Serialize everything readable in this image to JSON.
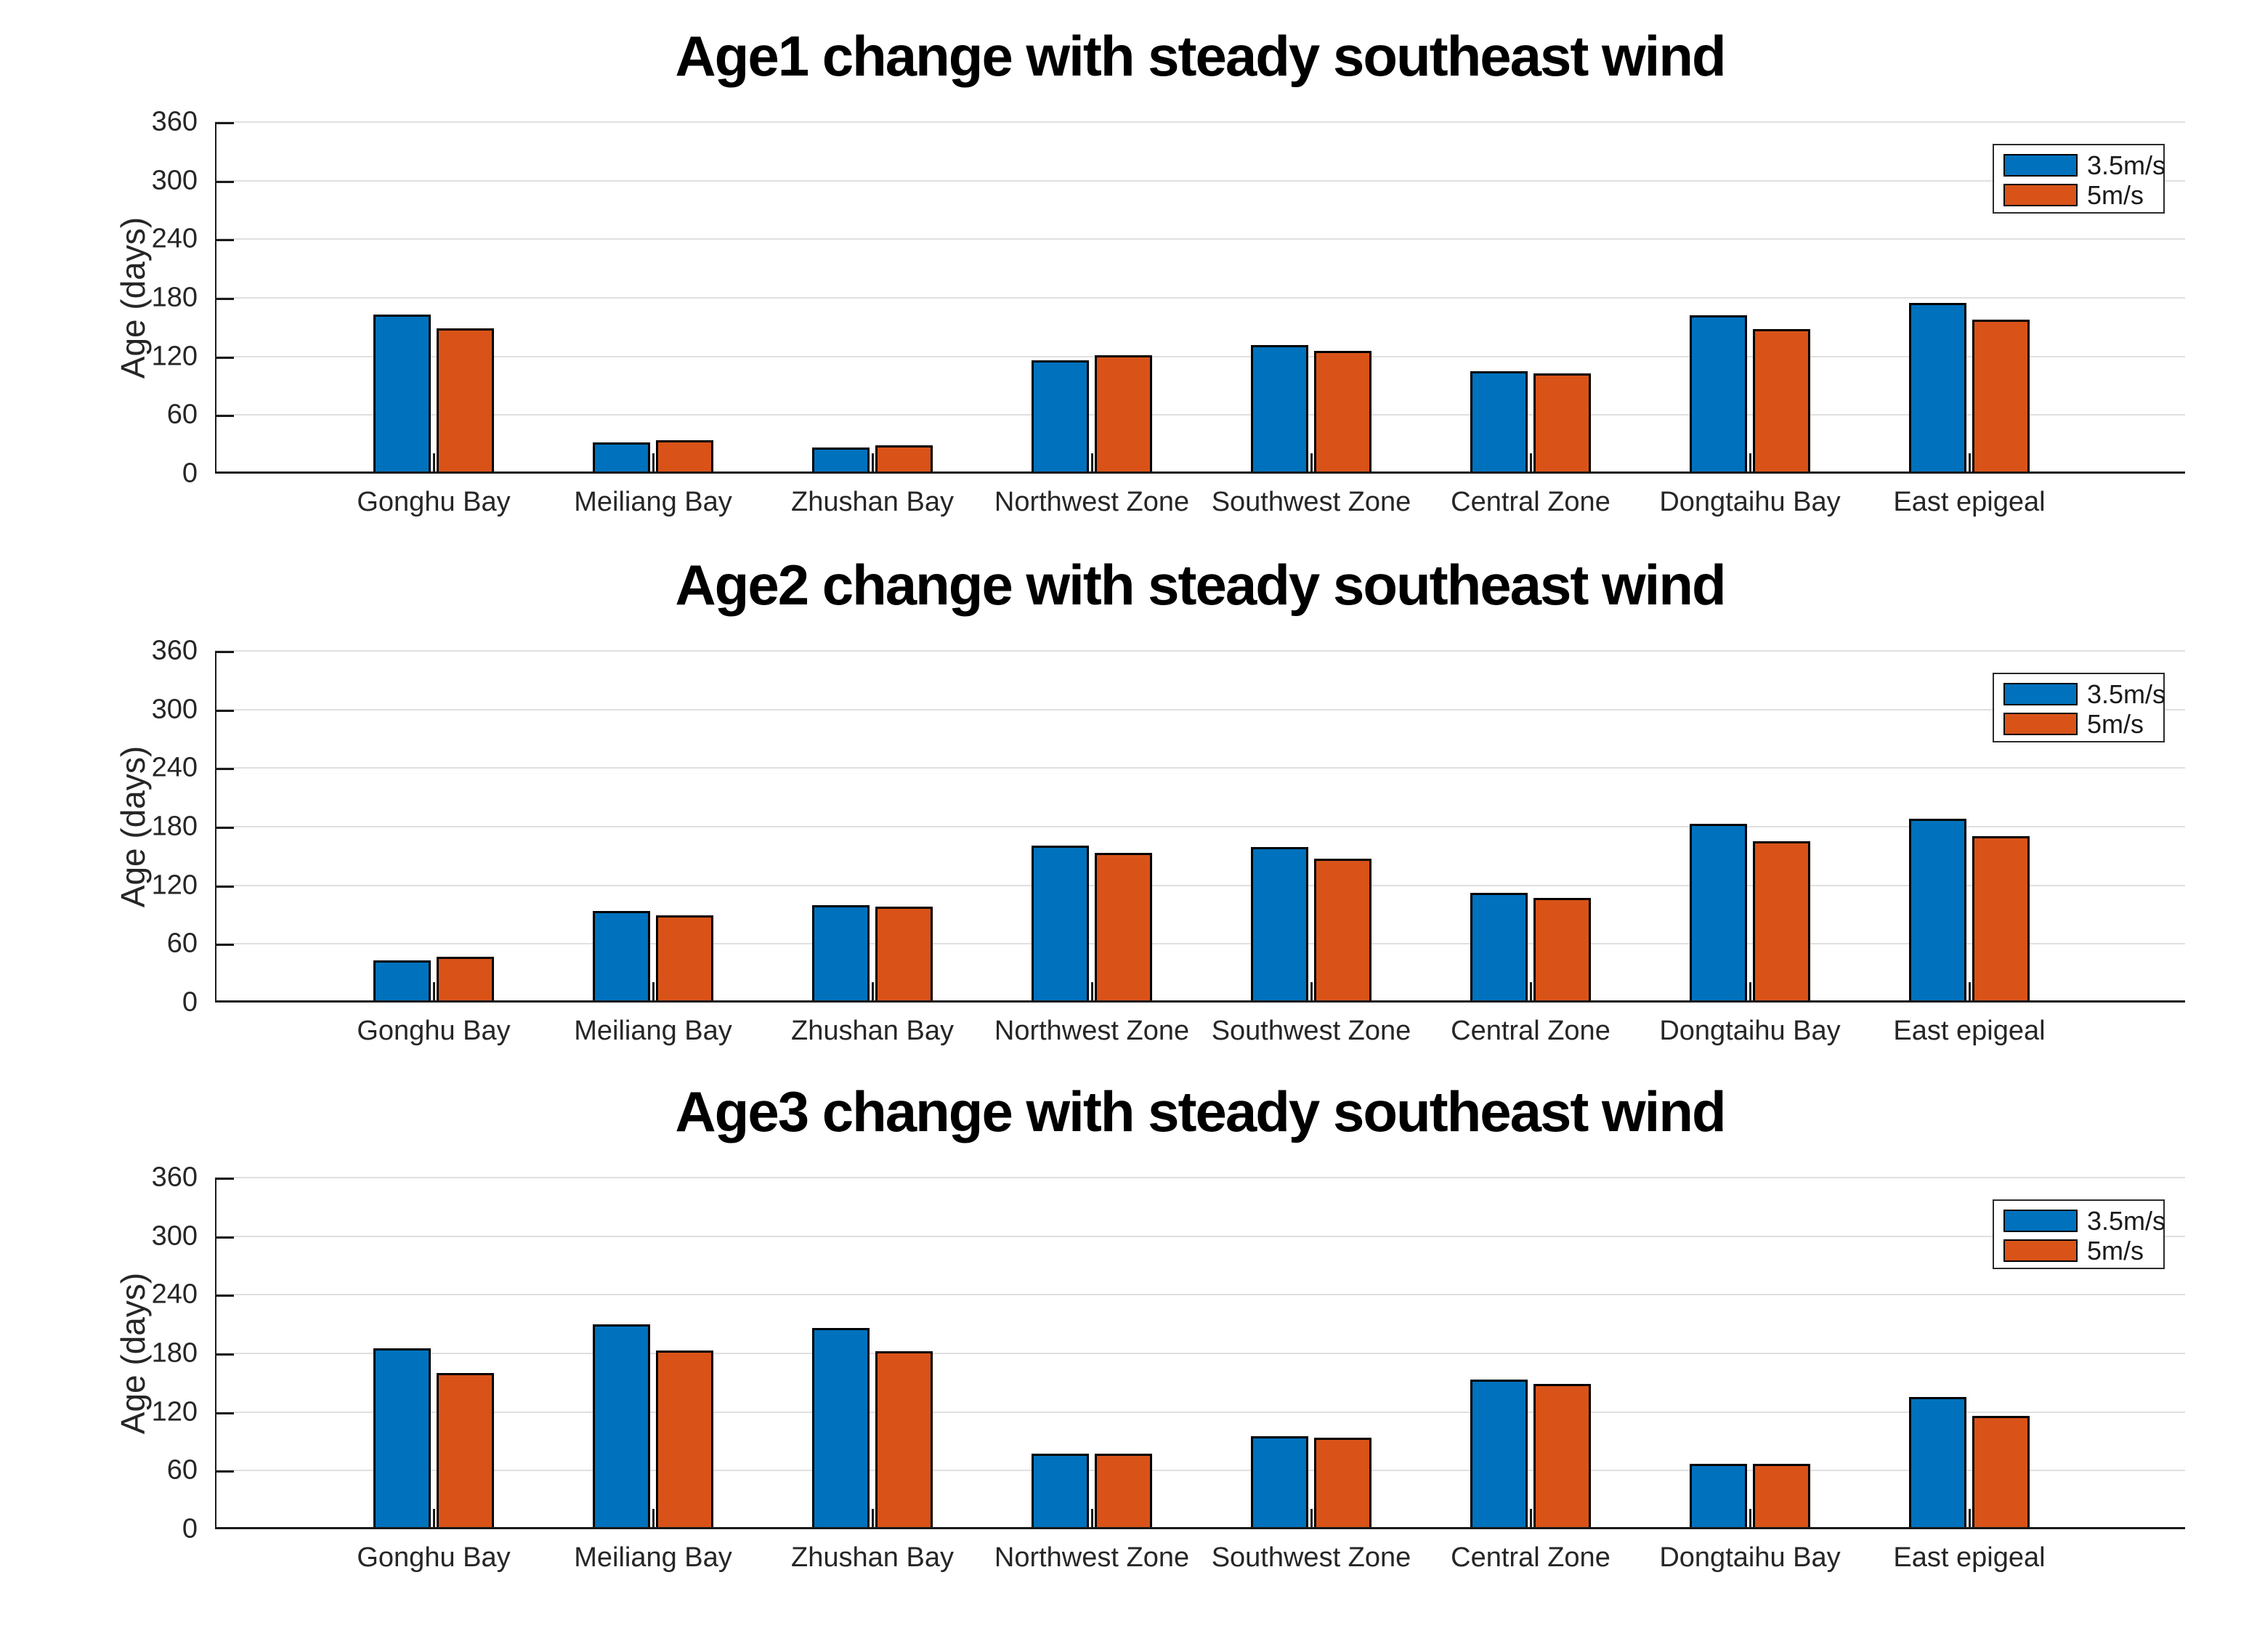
{
  "figure": {
    "background": "#ffffff",
    "accent_blue": "#0072BD",
    "accent_orange": "#D95319",
    "grid_color": "#e0e0e0",
    "axis_color": "#1a1a1a",
    "tick_text_color": "#262626"
  },
  "chart_data": [
    {
      "type": "bar",
      "title": "Age1 change with steady southeast wind",
      "xlabel": "",
      "ylabel": "Age (days)",
      "ylim": [
        0,
        360
      ],
      "ytick_step": 60,
      "grid": true,
      "legend_position": "top-right",
      "categories": [
        "Gonghu Bay",
        "Meiliang Bay",
        "Zhushan Bay",
        "Northwest Zone",
        "Southwest Zone",
        "Central Zone",
        "Dongtaihu Bay",
        "East epigeal"
      ],
      "series": [
        {
          "name": "3.5m/s",
          "color": "#0072BD",
          "values": [
            163,
            32,
            27,
            116,
            132,
            105,
            162,
            175
          ]
        },
        {
          "name": "5m/s",
          "color": "#D95319",
          "values": [
            149,
            34,
            29,
            121,
            126,
            103,
            148,
            158
          ]
        }
      ]
    },
    {
      "type": "bar",
      "title": "Age2 change with steady southeast wind",
      "xlabel": "",
      "ylabel": "Age (days)",
      "ylim": [
        0,
        360
      ],
      "ytick_step": 60,
      "grid": true,
      "legend_position": "top-right",
      "categories": [
        "Gonghu Bay",
        "Meiliang Bay",
        "Zhushan Bay",
        "Northwest Zone",
        "Southwest Zone",
        "Central Zone",
        "Dongtaihu Bay",
        "East epigeal"
      ],
      "series": [
        {
          "name": "3.5m/s",
          "color": "#0072BD",
          "values": [
            43,
            94,
            100,
            161,
            159,
            112,
            183,
            188
          ]
        },
        {
          "name": "5m/s",
          "color": "#D95319",
          "values": [
            47,
            89,
            98,
            153,
            147,
            107,
            165,
            170
          ]
        }
      ]
    },
    {
      "type": "bar",
      "title": "Age3 change with steady southeast wind",
      "xlabel": "",
      "ylabel": "Age (days)",
      "ylim": [
        0,
        360
      ],
      "ytick_step": 60,
      "grid": true,
      "legend_position": "top-right",
      "categories": [
        "Gonghu Bay",
        "Meiliang Bay",
        "Zhushan Bay",
        "Northwest Zone",
        "Southwest Zone",
        "Central Zone",
        "Dongtaihu Bay",
        "East epigeal"
      ],
      "series": [
        {
          "name": "3.5m/s",
          "color": "#0072BD",
          "values": [
            185,
            210,
            206,
            77,
            95,
            153,
            67,
            135
          ]
        },
        {
          "name": "5m/s",
          "color": "#D95319",
          "values": [
            160,
            183,
            182,
            77,
            94,
            149,
            67,
            116
          ]
        }
      ]
    }
  ]
}
